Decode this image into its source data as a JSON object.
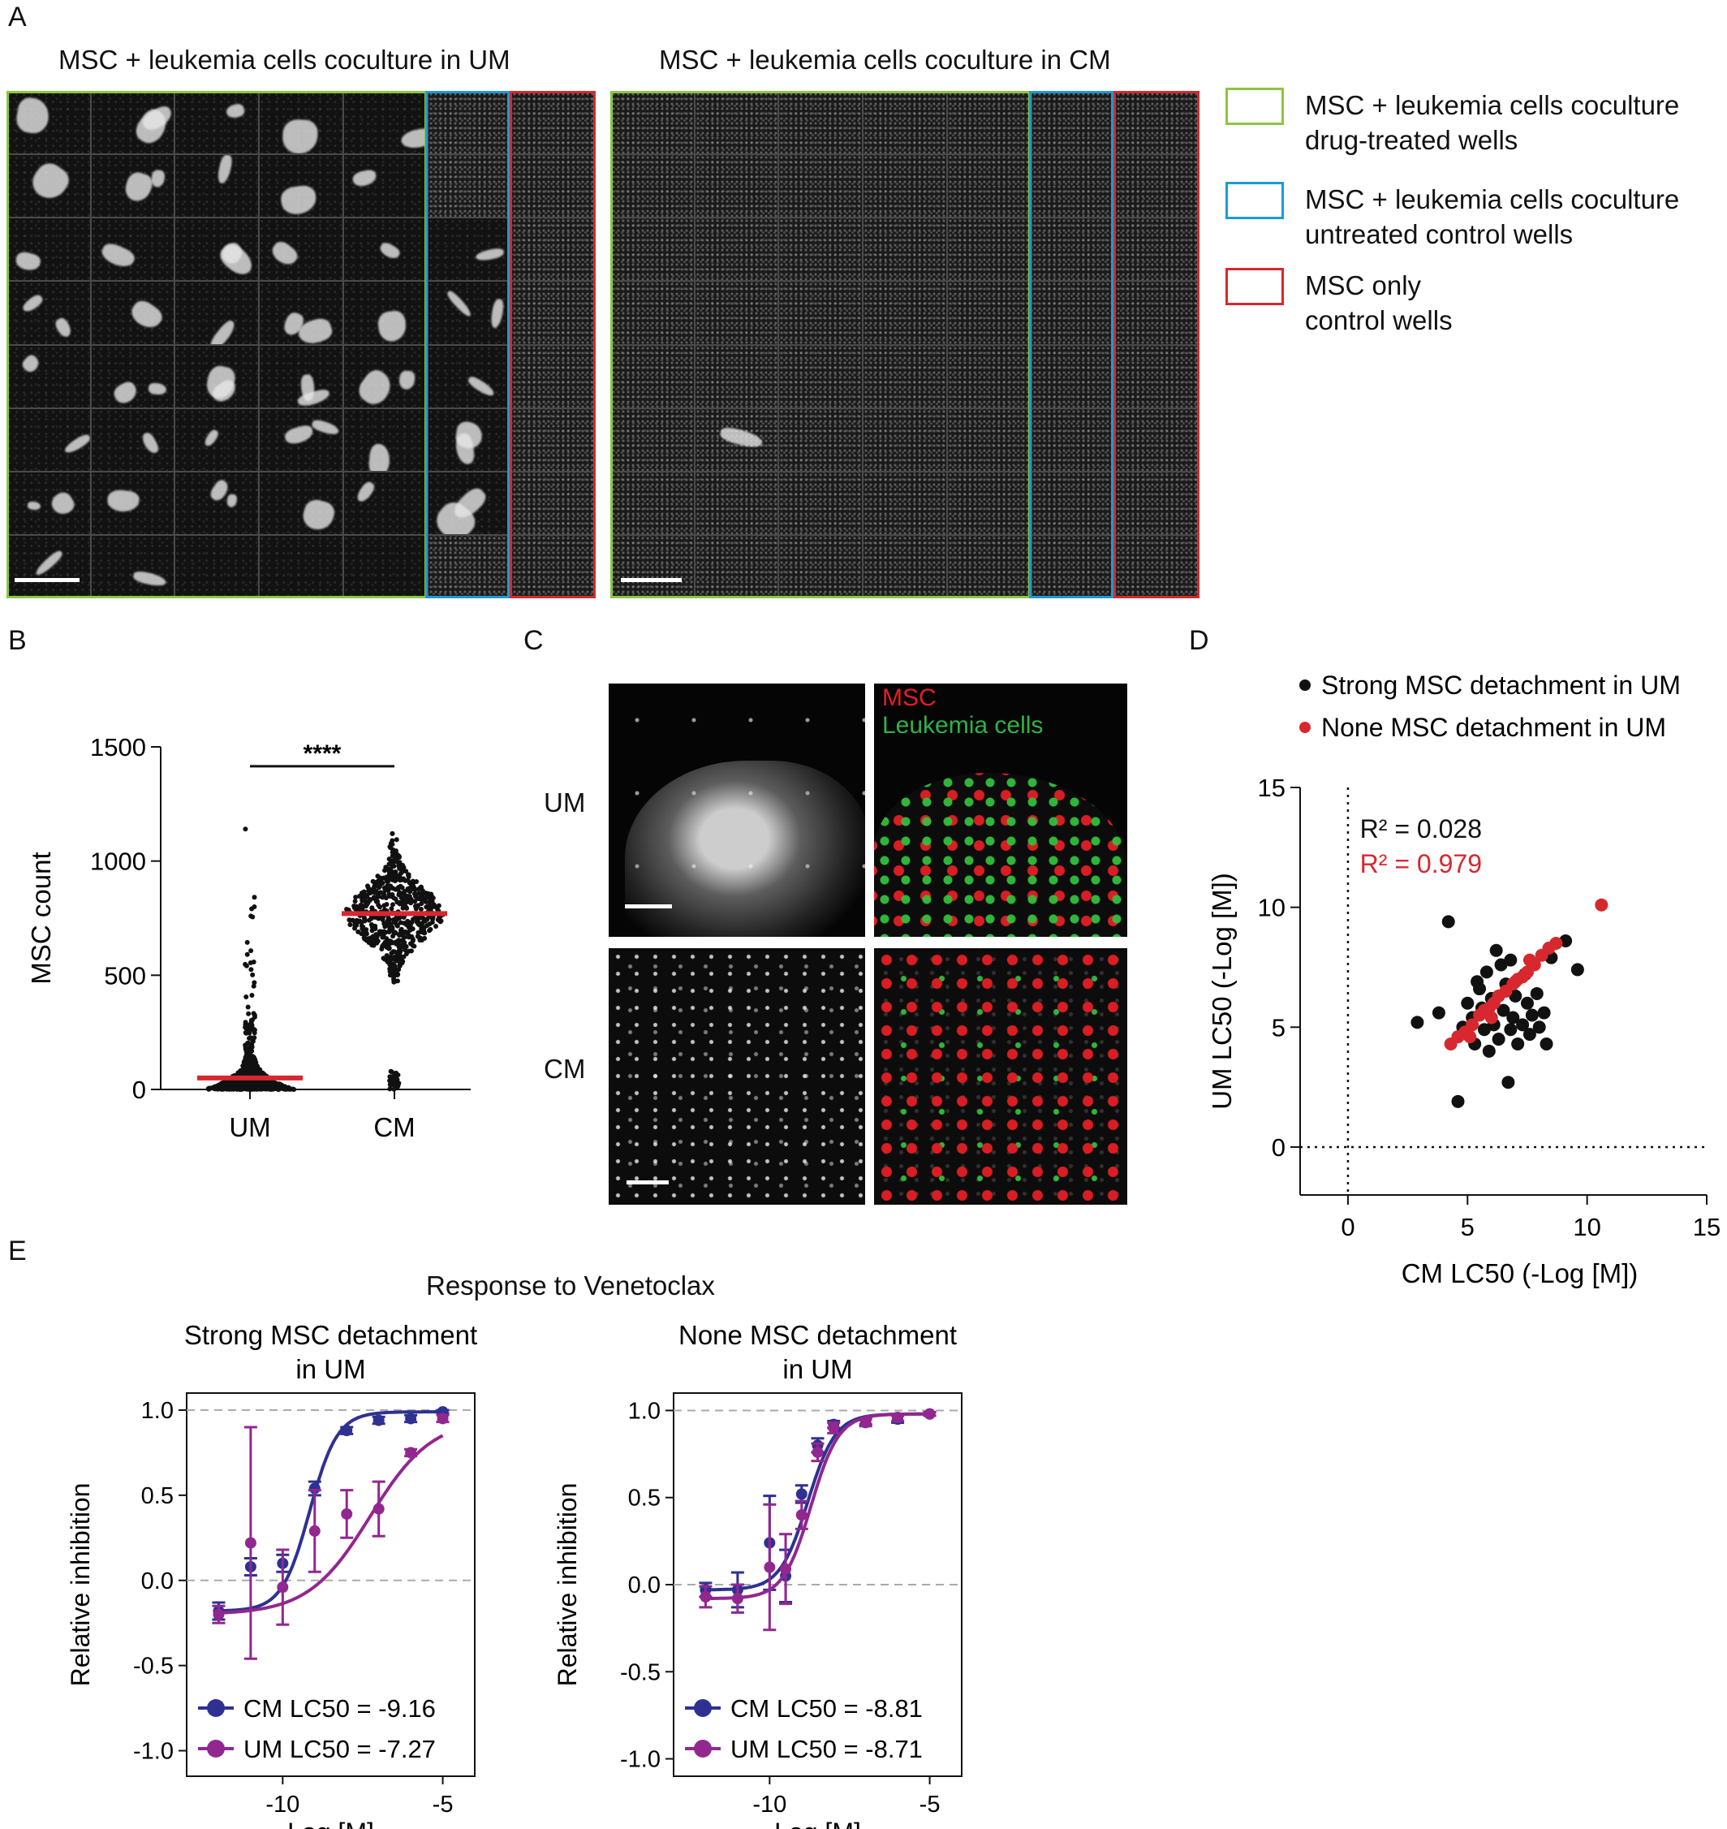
{
  "panel_letters": {
    "a": "A",
    "b": "B",
    "c": "C",
    "d": "D",
    "e": "E"
  },
  "panel_a": {
    "title_um": "MSC + leukemia cells coculture in UM",
    "title_cm": "MSC + leukemia cells coculture in CM",
    "legend": [
      {
        "label": "MSC + leukemia cells coculture\ndrug-treated wells",
        "color": "#8dc63f"
      },
      {
        "label": "MSC + leukemia cells coculture\nuntreated control wells",
        "color": "#1c9ad6"
      },
      {
        "label": "MSC only\ncontrol wells",
        "color": "#d7282f"
      }
    ]
  },
  "panel_c": {
    "row_um": "UM",
    "row_cm": "CM",
    "label_msc": "MSC",
    "label_leukemia": "Leukemia cells",
    "msc_color": "#e31e24",
    "leukemia_color": "#2fb344"
  },
  "panel_e_title": "Response to Venetoclax",
  "chart_data": [
    {
      "id": "B",
      "type": "scatter",
      "subtype": "beeswarm",
      "categories": [
        "UM",
        "CM"
      ],
      "ylabel": "MSC count",
      "ylim": [
        0,
        1500
      ],
      "yticks": [
        0,
        500,
        1000,
        1500
      ],
      "significance": "****",
      "median_color": "#d7282f",
      "series": [
        {
          "name": "UM",
          "median": 50,
          "min": 0,
          "max": 1140,
          "typical_range": [
            0,
            200
          ]
        },
        {
          "name": "CM",
          "median": 770,
          "min": 0,
          "max": 1120,
          "typical_range": [
            600,
            950
          ]
        }
      ]
    },
    {
      "id": "D",
      "type": "scatter",
      "xlabel": "CM LC50 (-Log [M])",
      "ylabel": "UM LC50 (-Log [M])",
      "xlim": [
        -2,
        15
      ],
      "ylim": [
        -2,
        15
      ],
      "xticks": [
        0,
        5,
        10,
        15
      ],
      "yticks": [
        0,
        5,
        10,
        15
      ],
      "legend_position": "top",
      "annotations": [
        {
          "text": "R² = 0.028",
          "color": "#111111"
        },
        {
          "text": "R² = 0.979",
          "color": "#d7282f"
        }
      ],
      "series": [
        {
          "name": "Strong MSC detachment in UM",
          "color": "#111111",
          "points": [
            [
              2.9,
              5.2
            ],
            [
              3.8,
              5.6
            ],
            [
              4.2,
              9.4
            ],
            [
              4.6,
              4.6
            ],
            [
              4.6,
              1.9
            ],
            [
              4.8,
              5.0
            ],
            [
              5.0,
              6.0
            ],
            [
              5.2,
              5.4
            ],
            [
              5.3,
              4.3
            ],
            [
              5.5,
              6.6
            ],
            [
              5.6,
              5.8
            ],
            [
              5.7,
              4.9
            ],
            [
              5.8,
              7.3
            ],
            [
              5.9,
              4.0
            ],
            [
              6.0,
              6.2
            ],
            [
              6.1,
              5.1
            ],
            [
              6.2,
              8.2
            ],
            [
              6.3,
              4.5
            ],
            [
              6.4,
              7.6
            ],
            [
              6.5,
              5.7
            ],
            [
              6.6,
              6.8
            ],
            [
              6.7,
              2.7
            ],
            [
              6.8,
              4.9
            ],
            [
              6.9,
              5.4
            ],
            [
              7.0,
              6.3
            ],
            [
              7.1,
              4.3
            ],
            [
              7.3,
              5.1
            ],
            [
              7.4,
              7.2
            ],
            [
              7.5,
              6.0
            ],
            [
              7.6,
              4.7
            ],
            [
              7.7,
              5.5
            ],
            [
              7.9,
              6.4
            ],
            [
              8.0,
              5.0
            ],
            [
              8.2,
              5.6
            ],
            [
              8.5,
              7.9
            ],
            [
              9.1,
              8.6
            ],
            [
              9.6,
              7.4
            ],
            [
              8.3,
              4.3
            ],
            [
              5.4,
              6.9
            ],
            [
              6.8,
              7.8
            ]
          ]
        },
        {
          "name": "None MSC detachment in UM",
          "color": "#d7282f",
          "points": [
            [
              4.3,
              4.3
            ],
            [
              4.6,
              4.6
            ],
            [
              4.9,
              4.8
            ],
            [
              5.2,
              5.1
            ],
            [
              5.5,
              5.5
            ],
            [
              5.7,
              5.7
            ],
            [
              5.9,
              5.8
            ],
            [
              6.1,
              6.0
            ],
            [
              6.3,
              6.3
            ],
            [
              6.6,
              6.5
            ],
            [
              6.9,
              6.8
            ],
            [
              7.1,
              7.0
            ],
            [
              7.3,
              7.1
            ],
            [
              7.5,
              7.3
            ],
            [
              7.8,
              7.6
            ],
            [
              8.1,
              8.0
            ],
            [
              8.4,
              8.3
            ],
            [
              8.7,
              8.5
            ],
            [
              5.1,
              4.6
            ],
            [
              6.0,
              5.4
            ],
            [
              7.0,
              6.9
            ],
            [
              7.6,
              7.8
            ],
            [
              10.6,
              10.1
            ]
          ]
        }
      ]
    },
    {
      "id": "E-left",
      "type": "line",
      "title": "Strong MSC detachment\nin UM",
      "xlabel": "Log [M]",
      "ylabel": "Relative inhibition",
      "xlim": [
        -13,
        -4
      ],
      "ylim": [
        -1.15,
        1.1
      ],
      "xticks": [
        -10,
        -5
      ],
      "yticks": [
        -1.0,
        -0.5,
        0.0,
        0.5,
        1.0
      ],
      "legend_position": "bottom-left",
      "series": [
        {
          "name": "CM LC50 = -9.16",
          "color": "#2e3192",
          "x": [
            -12,
            -11,
            -10,
            -9,
            -8,
            -7,
            -6,
            -5
          ],
          "y": [
            -0.18,
            0.08,
            0.1,
            0.54,
            0.88,
            0.94,
            0.95,
            0.99
          ],
          "err": [
            0.05,
            0.05,
            0.05,
            0.04,
            0.02,
            0.02,
            0.02,
            0.01
          ]
        },
        {
          "name": "UM LC50 = -7.27",
          "color": "#92278f",
          "x": [
            -12,
            -11,
            -10,
            -9,
            -8,
            -7,
            -6,
            -5
          ],
          "y": [
            -0.2,
            0.22,
            -0.04,
            0.29,
            0.39,
            0.42,
            0.75,
            0.95
          ],
          "err": [
            0.05,
            0.68,
            0.22,
            0.24,
            0.14,
            0.16,
            0.02,
            0.02
          ]
        }
      ]
    },
    {
      "id": "E-right",
      "type": "line",
      "title": "None MSC detachment\nin UM",
      "xlabel": "Log [M]",
      "ylabel": "Relative inhibition",
      "xlim": [
        -13,
        -4
      ],
      "ylim": [
        -1.1,
        1.1
      ],
      "xticks": [
        -10,
        -5
      ],
      "yticks": [
        -1.0,
        -0.5,
        0.0,
        0.5,
        1.0
      ],
      "legend_position": "bottom-left",
      "series": [
        {
          "name": "CM LC50 = -8.81",
          "color": "#2e3192",
          "x": [
            -12,
            -11,
            -10,
            -9.5,
            -9,
            -8.5,
            -8,
            -7,
            -6,
            -5
          ],
          "y": [
            -0.03,
            -0.03,
            0.24,
            0.05,
            0.52,
            0.8,
            0.92,
            0.94,
            0.95,
            0.98
          ],
          "err": [
            0.04,
            0.1,
            0.27,
            0.15,
            0.05,
            0.04,
            0.02,
            0.02,
            0.02,
            0.01
          ]
        },
        {
          "name": "UM LC50 = -8.71",
          "color": "#92278f",
          "x": [
            -12,
            -11,
            -10,
            -9.5,
            -9,
            -8.5,
            -8,
            -7,
            -6,
            -5
          ],
          "y": [
            -0.07,
            -0.08,
            0.1,
            0.09,
            0.4,
            0.76,
            0.9,
            0.93,
            0.96,
            0.98
          ],
          "err": [
            0.06,
            0.08,
            0.36,
            0.2,
            0.08,
            0.05,
            0.03,
            0.02,
            0.02,
            0.01
          ]
        }
      ]
    }
  ]
}
